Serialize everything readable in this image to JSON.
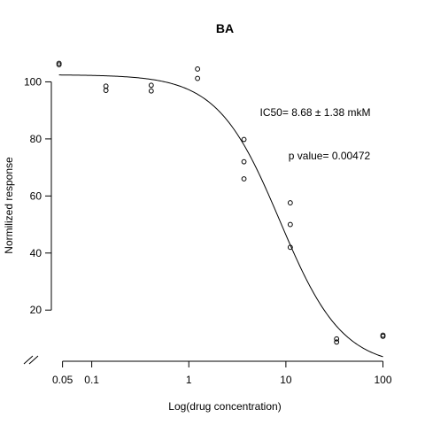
{
  "chart_data": {
    "type": "scatter",
    "title": "BA",
    "xlabel": "Log(drug concentration)",
    "ylabel": "Normilized response",
    "x_scale": "log",
    "xlim": [
      0.04,
      130
    ],
    "ylim": [
      3,
      111
    ],
    "x_ticks": [
      {
        "value": 0.05,
        "label": "0.05"
      },
      {
        "value": 0.1,
        "label": "0.1"
      },
      {
        "value": 1,
        "label": "1"
      },
      {
        "value": 10,
        "label": "10"
      },
      {
        "value": 100,
        "label": "100"
      }
    ],
    "y_ticks": [
      {
        "value": 20,
        "label": "20"
      },
      {
        "value": 40,
        "label": "40"
      },
      {
        "value": 60,
        "label": "60"
      },
      {
        "value": 80,
        "label": "80"
      },
      {
        "value": 100,
        "label": "100"
      }
    ],
    "points": [
      {
        "x": 0.046,
        "y": 106.5
      },
      {
        "x": 0.046,
        "y": 106.0
      },
      {
        "x": 0.14,
        "y": 98.5
      },
      {
        "x": 0.14,
        "y": 97.0
      },
      {
        "x": 0.41,
        "y": 98.8
      },
      {
        "x": 0.41,
        "y": 96.8
      },
      {
        "x": 1.23,
        "y": 104.5
      },
      {
        "x": 1.23,
        "y": 101.2
      },
      {
        "x": 3.7,
        "y": 79.8
      },
      {
        "x": 3.7,
        "y": 72.0
      },
      {
        "x": 3.7,
        "y": 66.0
      },
      {
        "x": 11.1,
        "y": 57.6
      },
      {
        "x": 11.1,
        "y": 50.0
      },
      {
        "x": 11.1,
        "y": 42.0
      },
      {
        "x": 33.3,
        "y": 9.9
      },
      {
        "x": 33.3,
        "y": 8.8
      },
      {
        "x": 100,
        "y": 11.2
      },
      {
        "x": 100,
        "y": 10.8
      }
    ],
    "fit_curve": {
      "top": 102.5,
      "bottom": 0,
      "ic50": 8.68,
      "hill": 1.35
    },
    "axis_break": true,
    "annotations": [
      "IC50= 8.68 ± 1.38 mkM",
      "p value= 0.00472"
    ],
    "grid": false
  }
}
